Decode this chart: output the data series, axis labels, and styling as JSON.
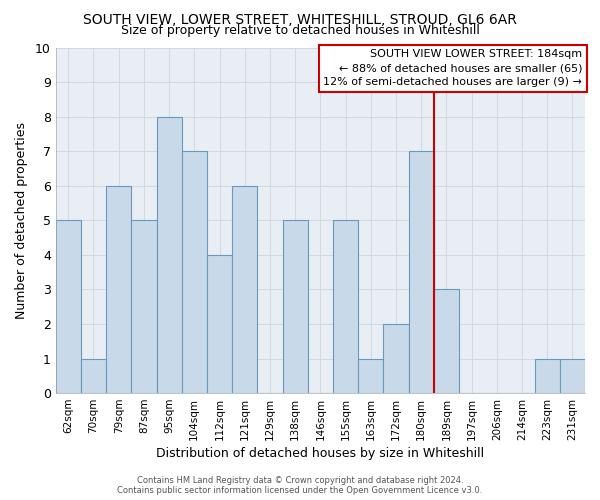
{
  "title": "SOUTH VIEW, LOWER STREET, WHITESHILL, STROUD, GL6 6AR",
  "subtitle": "Size of property relative to detached houses in Whiteshill",
  "xlabel": "Distribution of detached houses by size in Whiteshill",
  "ylabel": "Number of detached properties",
  "bar_labels": [
    "62sqm",
    "70sqm",
    "79sqm",
    "87sqm",
    "95sqm",
    "104sqm",
    "112sqm",
    "121sqm",
    "129sqm",
    "138sqm",
    "146sqm",
    "155sqm",
    "163sqm",
    "172sqm",
    "180sqm",
    "189sqm",
    "197sqm",
    "206sqm",
    "214sqm",
    "223sqm",
    "231sqm"
  ],
  "bar_values": [
    5,
    1,
    6,
    5,
    8,
    7,
    4,
    6,
    0,
    5,
    0,
    5,
    1,
    2,
    7,
    3,
    0,
    0,
    0,
    1,
    1
  ],
  "bar_color": "#c8daea",
  "bar_edge_color": "#6699bb",
  "grid_color": "#d0d8e0",
  "vline_x_index": 14,
  "vline_color": "#cc0000",
  "ylim": [
    0,
    10
  ],
  "yticks": [
    0,
    1,
    2,
    3,
    4,
    5,
    6,
    7,
    8,
    9,
    10
  ],
  "annotation_title": "SOUTH VIEW LOWER STREET: 184sqm",
  "annotation_line1": "← 88% of detached houses are smaller (65)",
  "annotation_line2": "12% of semi-detached houses are larger (9) →",
  "annotation_box_color": "#ffffff",
  "annotation_box_edge": "#cc0000",
  "footer_line1": "Contains HM Land Registry data © Crown copyright and database right 2024.",
  "footer_line2": "Contains public sector information licensed under the Open Government Licence v3.0.",
  "background_color": "#ffffff",
  "plot_bg_color": "#e8eef4"
}
